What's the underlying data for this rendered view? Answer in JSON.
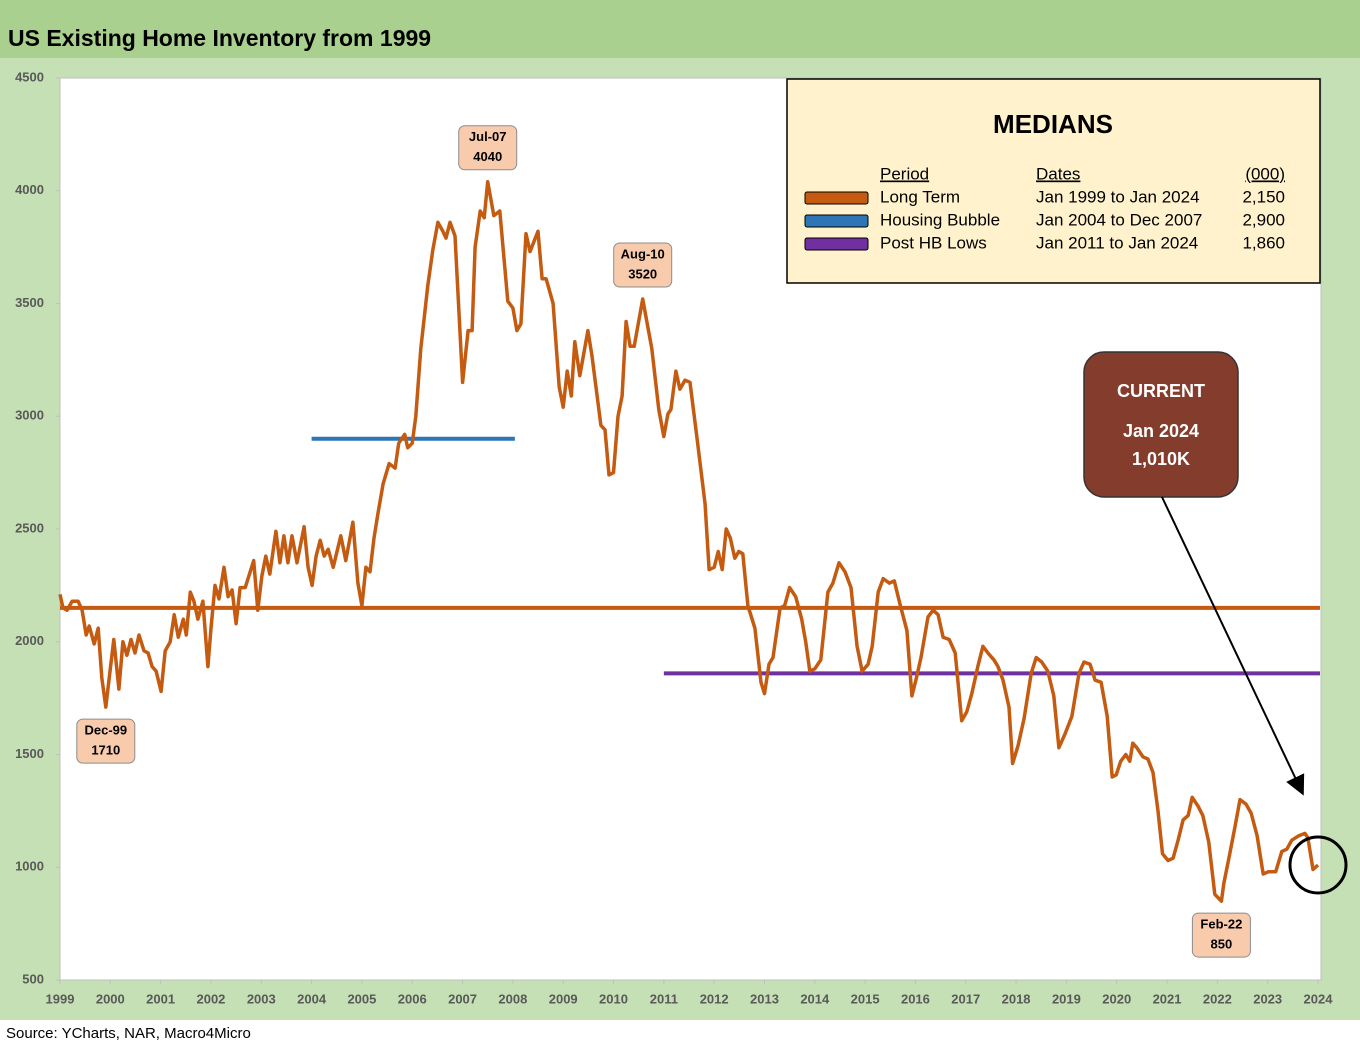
{
  "chart_data": {
    "type": "line",
    "title": "US Existing Home Inventory from 1999",
    "source": "Source: YCharts, NAR, Macro4Micro",
    "xlim": [
      1999,
      2024
    ],
    "xticks": [
      1999,
      2000,
      2001,
      2002,
      2003,
      2004,
      2005,
      2006,
      2007,
      2008,
      2009,
      2010,
      2011,
      2012,
      2013,
      2014,
      2015,
      2016,
      2017,
      2018,
      2019,
      2020,
      2021,
      2022,
      2023,
      2024
    ],
    "ylim": [
      500,
      4500
    ],
    "yticks": [
      500,
      1000,
      1500,
      2000,
      2500,
      3000,
      3500,
      4000,
      4500
    ],
    "grid": false,
    "x": [
      1999.0,
      1999.06,
      1999.14,
      1999.24,
      1999.36,
      1999.44,
      1999.52,
      1999.58,
      1999.68,
      1999.76,
      1999.83,
      1999.91,
      2000.0,
      2000.07,
      2000.17,
      2000.25,
      2000.33,
      2000.41,
      2000.49,
      2000.57,
      2000.67,
      2000.75,
      2000.83,
      2000.91,
      2001.01,
      2001.09,
      2001.19,
      2001.27,
      2001.35,
      2001.45,
      2001.51,
      2001.59,
      2001.66,
      2001.74,
      2001.84,
      2001.94,
      2002.0,
      2002.08,
      2002.16,
      2002.26,
      2002.34,
      2002.42,
      2002.5,
      2002.58,
      2002.68,
      2002.78,
      2002.85,
      2002.93,
      2003.01,
      2003.09,
      2003.17,
      2003.29,
      2003.37,
      2003.45,
      2003.53,
      2003.61,
      2003.71,
      2003.85,
      2003.93,
      2004.01,
      2004.09,
      2004.17,
      2004.25,
      2004.33,
      2004.43,
      2004.58,
      2004.68,
      2004.82,
      2004.92,
      2005.0,
      2005.08,
      2005.16,
      2005.24,
      2005.32,
      2005.42,
      2005.54,
      2005.66,
      2005.73,
      2005.85,
      2005.91,
      2006.0,
      2006.07,
      2006.17,
      2006.31,
      2006.41,
      2006.51,
      2006.61,
      2006.67,
      2006.75,
      2006.85,
      2007.0,
      2007.11,
      2007.19,
      2007.25,
      2007.35,
      2007.43,
      2007.5,
      2007.62,
      2007.74,
      2007.9,
      2008.0,
      2008.08,
      2008.16,
      2008.26,
      2008.34,
      2008.5,
      2008.58,
      2008.66,
      2008.8,
      2008.92,
      2009.0,
      2009.08,
      2009.16,
      2009.23,
      2009.33,
      2009.49,
      2009.57,
      2009.75,
      2009.83,
      2009.91,
      2010.0,
      2010.09,
      2010.17,
      2010.25,
      2010.33,
      2010.41,
      2010.58,
      2010.76,
      2010.9,
      2011.0,
      2011.08,
      2011.14,
      2011.24,
      2011.32,
      2011.42,
      2011.52,
      2011.66,
      2011.82,
      2011.9,
      2012.0,
      2012.08,
      2012.16,
      2012.24,
      2012.32,
      2012.41,
      2012.49,
      2012.57,
      2012.67,
      2012.81,
      2012.93,
      2013.0,
      2013.09,
      2013.17,
      2013.31,
      2013.4,
      2013.5,
      2013.62,
      2013.74,
      2013.82,
      2013.9,
      2014.0,
      2014.12,
      2014.26,
      2014.36,
      2014.48,
      2014.6,
      2014.72,
      2014.84,
      2014.94,
      2015.06,
      2015.14,
      2015.26,
      2015.36,
      2015.48,
      2015.58,
      2015.69,
      2015.83,
      2015.93,
      2016.01,
      2016.11,
      2016.25,
      2016.35,
      2016.45,
      2016.55,
      2016.67,
      2016.79,
      2016.92,
      2017.02,
      2017.12,
      2017.24,
      2017.34,
      2017.44,
      2017.56,
      2017.64,
      2017.74,
      2017.86,
      2017.93,
      2018.04,
      2018.16,
      2018.3,
      2018.4,
      2018.51,
      2018.63,
      2018.75,
      2018.85,
      2018.97,
      2019.11,
      2019.25,
      2019.35,
      2019.47,
      2019.57,
      2019.69,
      2019.81,
      2019.91,
      2019.99,
      2020.08,
      2020.18,
      2020.26,
      2020.32,
      2020.4,
      2020.52,
      2020.62,
      2020.72,
      2020.82,
      2020.91,
      2021.02,
      2021.12,
      2021.22,
      2021.32,
      2021.42,
      2021.5,
      2021.62,
      2021.71,
      2021.83,
      2021.95,
      2022.08,
      2022.13,
      2022.23,
      2022.35,
      2022.45,
      2022.57,
      2022.67,
      2022.79,
      2022.91,
      2023.01,
      2023.16,
      2023.28,
      2023.38,
      2023.48,
      2023.62,
      2023.74,
      2023.8,
      2023.9,
      2024.0
    ],
    "series": [
      {
        "color": "#c55a11",
        "values": [
          2210,
          2150,
          2140,
          2180,
          2180,
          2140,
          2030,
          2070,
          1990,
          2060,
          1840,
          1710,
          1880,
          2010,
          1790,
          2000,
          1940,
          2010,
          1950,
          2030,
          1960,
          1950,
          1890,
          1870,
          1780,
          1960,
          2000,
          2120,
          2020,
          2100,
          2030,
          2220,
          2180,
          2100,
          2180,
          1890,
          2060,
          2250,
          2190,
          2330,
          2200,
          2230,
          2080,
          2240,
          2240,
          2310,
          2360,
          2140,
          2290,
          2380,
          2300,
          2490,
          2350,
          2470,
          2350,
          2470,
          2350,
          2510,
          2330,
          2250,
          2380,
          2450,
          2380,
          2410,
          2330,
          2470,
          2360,
          2530,
          2260,
          2160,
          2330,
          2310,
          2460,
          2570,
          2700,
          2790,
          2770,
          2880,
          2920,
          2860,
          2880,
          3000,
          3300,
          3580,
          3740,
          3860,
          3820,
          3790,
          3860,
          3800,
          3150,
          3380,
          3380,
          3750,
          3910,
          3880,
          4040,
          3890,
          3910,
          3510,
          3480,
          3380,
          3410,
          3810,
          3730,
          3820,
          3610,
          3610,
          3500,
          3130,
          3040,
          3200,
          3090,
          3330,
          3180,
          3380,
          3270,
          2960,
          2940,
          2740,
          2750,
          3000,
          3090,
          3420,
          3310,
          3310,
          3520,
          3300,
          3030,
          2910,
          3010,
          3030,
          3200,
          3120,
          3160,
          3150,
          2900,
          2610,
          2320,
          2330,
          2400,
          2320,
          2500,
          2460,
          2370,
          2400,
          2390,
          2160,
          2060,
          1820,
          1770,
          1900,
          1930,
          2150,
          2160,
          2240,
          2200,
          2100,
          2000,
          1870,
          1880,
          1920,
          2220,
          2260,
          2350,
          2310,
          2240,
          1980,
          1870,
          1900,
          1980,
          2220,
          2280,
          2260,
          2270,
          2170,
          2050,
          1760,
          1830,
          1930,
          2110,
          2140,
          2120,
          2020,
          2010,
          1950,
          1650,
          1690,
          1770,
          1890,
          1980,
          1950,
          1920,
          1890,
          1830,
          1710,
          1460,
          1540,
          1660,
          1860,
          1930,
          1910,
          1870,
          1760,
          1530,
          1590,
          1670,
          1860,
          1910,
          1900,
          1830,
          1820,
          1670,
          1400,
          1410,
          1470,
          1500,
          1470,
          1550,
          1530,
          1490,
          1480,
          1420,
          1250,
          1060,
          1030,
          1040,
          1120,
          1210,
          1230,
          1310,
          1270,
          1230,
          1110,
          880,
          850,
          930,
          1040,
          1180,
          1300,
          1280,
          1240,
          1140,
          970,
          980,
          980,
          1070,
          1080,
          1120,
          1140,
          1150,
          1130,
          990,
          1010
        ]
      }
    ],
    "legend_title": "MEDIANS",
    "legend_headers": [
      "Period",
      "Dates",
      "(000)"
    ],
    "medians": [
      {
        "name": "Long Term",
        "dates": "Jan 1999 to Jan 2024",
        "value": 2150,
        "value_label": "2,150",
        "color": "#c55a11",
        "x": [
          1999,
          2024
        ]
      },
      {
        "name": "Housing Bubble",
        "dates": "Jan 2004 to Dec 2007",
        "value": 2900,
        "value_label": "2,900",
        "color": "#2e75b6",
        "x": [
          2004,
          2008
        ]
      },
      {
        "name": "Post HB Lows",
        "dates": "Jan 2011 to Jan 2024",
        "value": 1860,
        "value_label": "1,860",
        "color": "#7030a0",
        "x": [
          2011,
          2024
        ]
      }
    ],
    "annotations": [
      {
        "label": "Dec-99",
        "value": 1710,
        "x": 1999.91,
        "position": "below"
      },
      {
        "label": "Jul-07",
        "value": 4040,
        "x": 2007.5,
        "position": "above"
      },
      {
        "label": "Aug-10",
        "value": 3520,
        "x": 2010.58,
        "position": "above"
      },
      {
        "label": "Feb-22",
        "value": 850,
        "x": 2022.08,
        "position": "below"
      }
    ],
    "callout": {
      "title": "CURRENT",
      "date": "Jan 2024",
      "value_label": "1,010K",
      "value": 1010,
      "x": 2024
    }
  }
}
